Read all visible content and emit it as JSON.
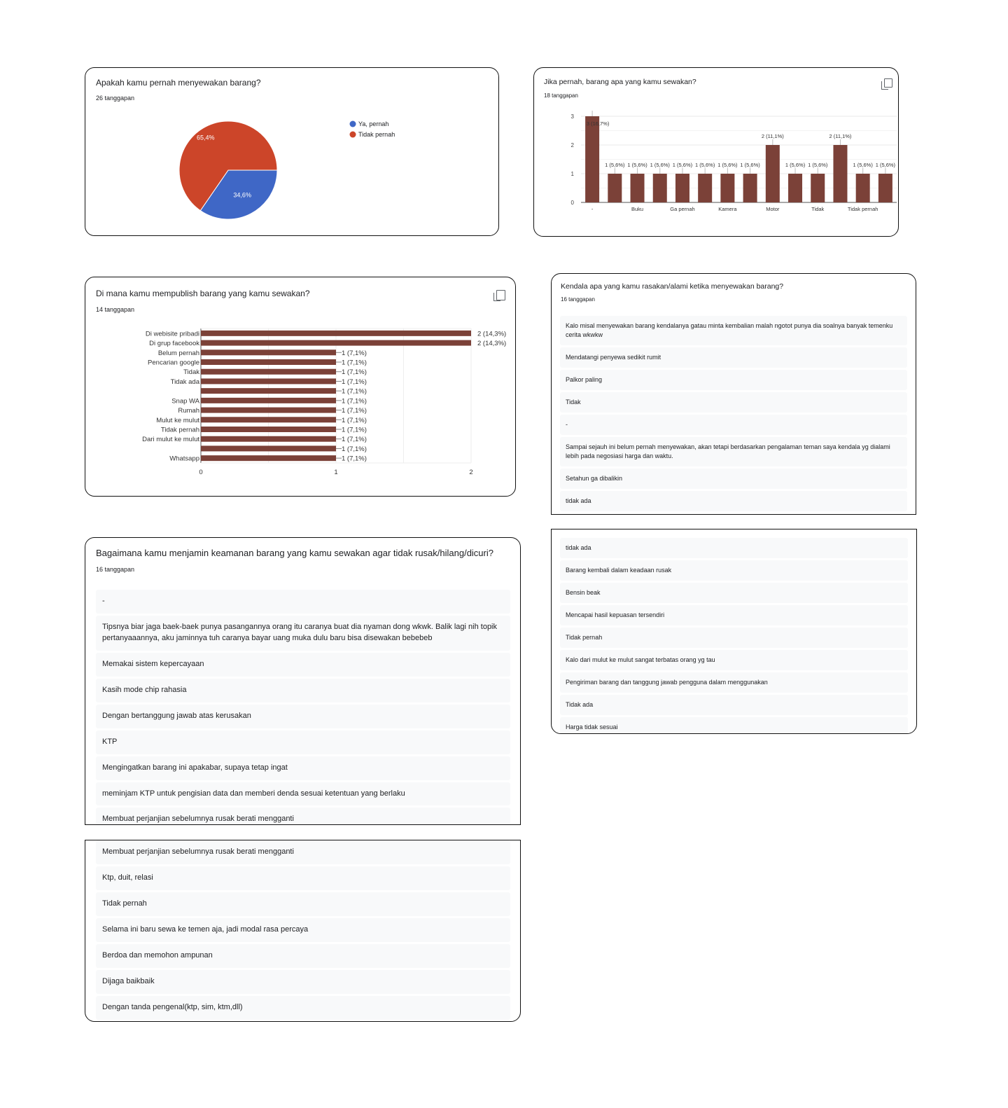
{
  "q1": {
    "title": "Apakah kamu pernah menyewakan barang?",
    "count": "26 tanggapan",
    "chart_data": {
      "type": "pie",
      "slices": [
        {
          "label": "Ya, pernah",
          "value": 34.6,
          "display": "34,6%",
          "color": "#3f67c6"
        },
        {
          "label": "Tidak pernah",
          "value": 65.4,
          "display": "65,4%",
          "color": "#cc4529"
        }
      ],
      "legend": "right"
    }
  },
  "q2": {
    "title": "Jika pernah, barang apa yang kamu sewakan?",
    "count": "18 tanggapan",
    "chart_data": {
      "type": "bar",
      "categories": [
        "-",
        "",
        "Buku",
        "",
        "Ga pernah",
        "",
        "Kamera",
        "",
        "Motor",
        "",
        "Tidak",
        "",
        "Tidak pernah",
        ""
      ],
      "values": [
        3,
        1,
        1,
        1,
        1,
        1,
        1,
        1,
        2,
        1,
        1,
        2,
        1,
        1
      ],
      "labels": [
        "3 (16,7%)",
        "1 (5,6%)",
        "1 (5,6%)",
        "1 (5,6%)",
        "1 (5,6%)",
        "1 (5,6%)",
        "1 (5,6%)",
        "1 (5,6%)",
        "2 (11,1%)",
        "1 (5,6%)",
        "1 (5,6%)",
        "2 (11,1%)",
        "1 (5,6%)",
        "1 (5,6%)"
      ],
      "yticks": [
        "0",
        "1",
        "2",
        "3"
      ],
      "ylim": [
        0,
        3
      ],
      "grid": true,
      "color": "#7b4138"
    }
  },
  "q3": {
    "title": "Di mana kamu mempublish barang yang kamu sewakan?",
    "count": "14 tanggapan",
    "chart_data": {
      "type": "bar",
      "orientation": "horizontal",
      "categories": [
        "Di webisite pribadi",
        "Di grup facebook",
        "Belum pernah",
        "Pencarian google",
        "Tidak",
        "Tidak ada",
        "",
        "Snap WA",
        "Rumah",
        "Mulut ke mulut",
        "Tidak pernah",
        "Dari mulut ke mulut",
        "",
        "Whatsapp"
      ],
      "values": [
        2,
        2,
        1,
        1,
        1,
        1,
        1,
        1,
        1,
        1,
        1,
        1,
        1,
        1
      ],
      "labels": [
        "2 (14,3%)",
        "2 (14,3%)",
        "1 (7,1%)",
        "1 (7,1%)",
        "1 (7,1%)",
        "1 (7,1%)",
        "1 (7,1%)",
        "1 (7,1%)",
        "1 (7,1%)",
        "1 (7,1%)",
        "1 (7,1%)",
        "1 (7,1%)",
        "1 (7,1%)",
        "1 (7,1%)"
      ],
      "xticks": [
        "0",
        "1",
        "2"
      ],
      "xlim": [
        0,
        2
      ],
      "grid": true,
      "color": "#7b4138"
    }
  },
  "q4": {
    "title": "Kendala apa yang kamu rasakan/alami ketika menyewakan barang?",
    "count": "16 tanggapan",
    "part1": [
      "Kalo misal menyewakan barang kendalanya gatau minta kembalian malah ngotot punya dia soalnya banyak temenku cerita wkwkw",
      "Mendatangi penyewa sedikit rumit",
      "Palkor paling",
      "Tidak",
      "-",
      "Sampai sejauh ini belum pernah menyewakan, akan tetapi berdasarkan pengalaman teman saya kendala yg dialami lebih pada negosiasi harga dan waktu.",
      "Setahun ga dibalikin",
      "tidak ada"
    ],
    "part2": [
      "tidak ada",
      "Barang kembali dalam keadaan rusak",
      "Bensin beak",
      "Mencapai hasil kepuasan tersendiri",
      "Tidak pernah",
      "Kalo dari mulut ke mulut sangat terbatas orang yg tau",
      "Pengiriman barang dan tanggung jawab pengguna dalam menggunakan",
      "Tidak ada",
      "Harga tidak sesuai"
    ]
  },
  "q5": {
    "title": "Bagaimana kamu menjamin keamanan barang yang kamu sewakan agar tidak rusak/hilang/dicuri?",
    "count": "16 tanggapan",
    "part1": [
      "-",
      "Tipsnya biar jaga baek-baek punya pasangannya orang itu caranya buat dia nyaman dong wkwk. Balik lagi nih topik pertanyaaannya, aku jaminnya tuh caranya bayar uang muka dulu baru bisa disewakan bebebeb",
      "Memakai sistem kepercayaan",
      "Kasih mode chip rahasia",
      "Dengan bertanggung jawab atas kerusakan",
      "KTP",
      "Mengingatkan barang ini apakabar, supaya tetap ingat",
      "meminjam KTP untuk pengisian data dan memberi denda sesuai ketentuan yang berlaku",
      "Membuat perjanjian sebelumnya rusak berati mengganti"
    ],
    "part2": [
      "Membuat perjanjian sebelumnya rusak berati mengganti",
      "Ktp, duit, relasi",
      "Tidak pernah",
      "Selama ini baru sewa ke temen aja, jadi modal rasa percaya",
      "Berdoa dan memohon ampunan",
      "Dijaga baikbaik",
      "Dengan tanda pengenal(ktp, sim, ktm,dll)"
    ]
  }
}
